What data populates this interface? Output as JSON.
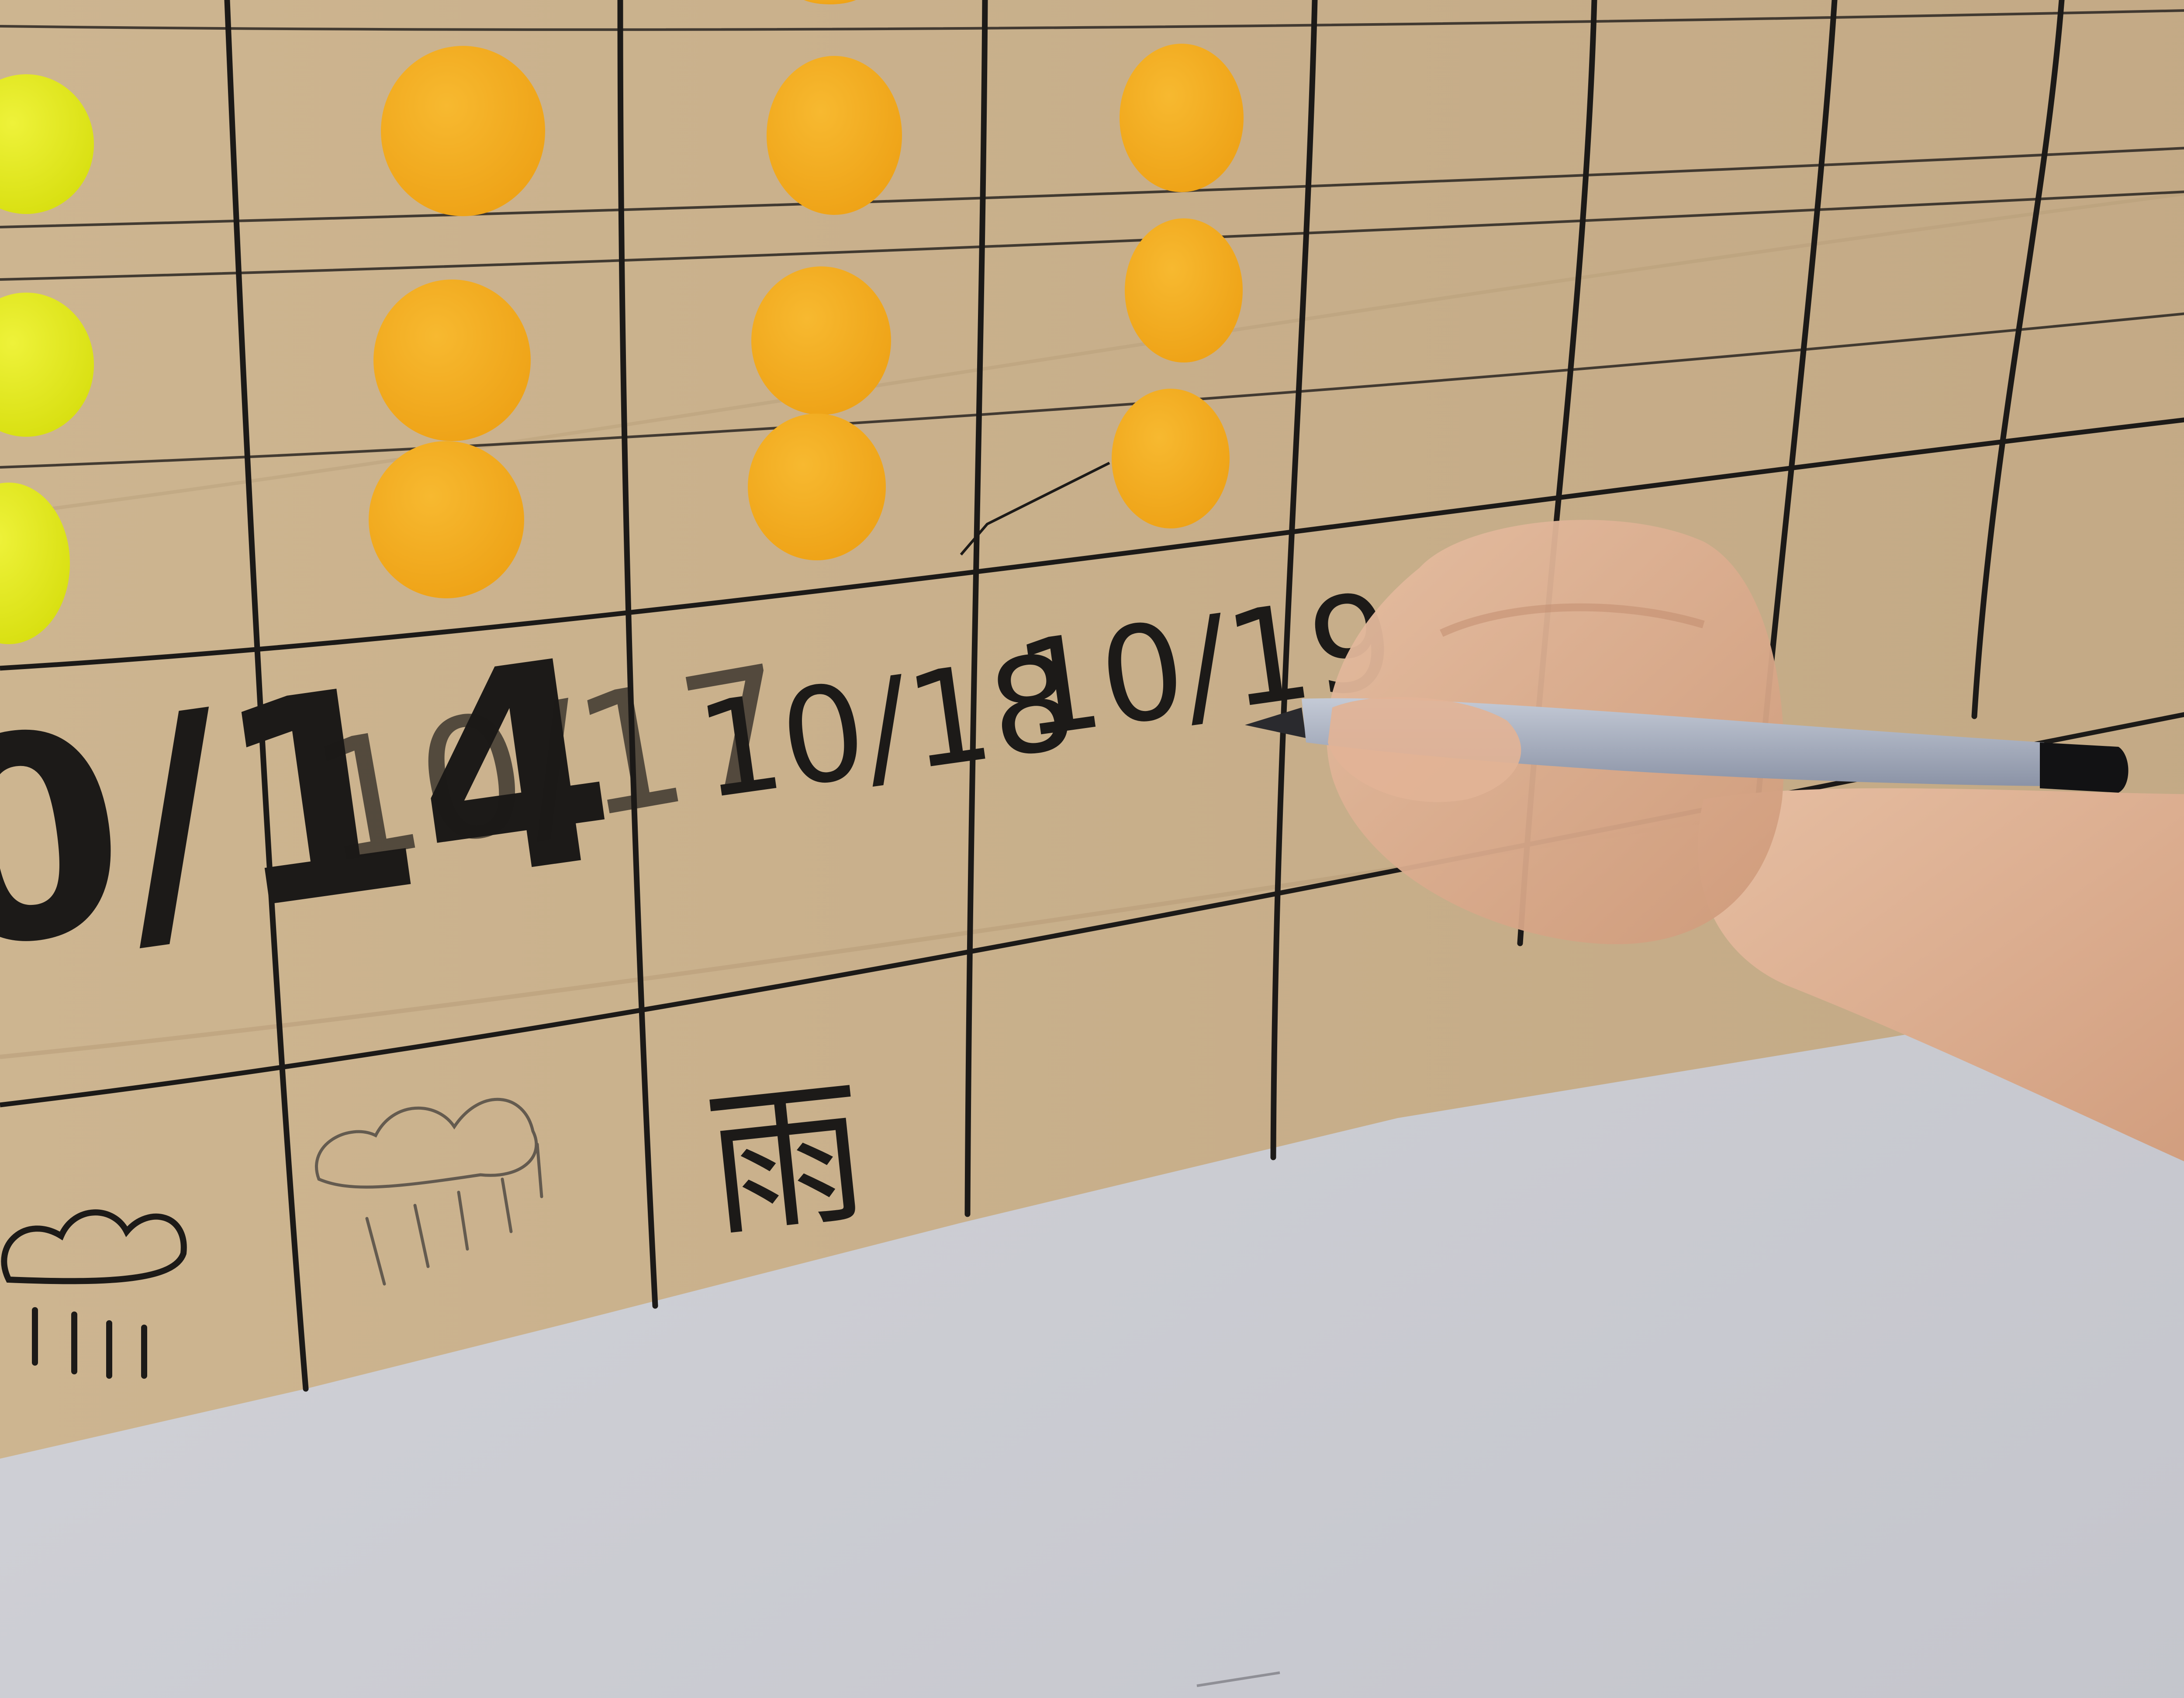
{
  "scene": {
    "description_tag": "photo",
    "colors": {
      "wall": "#cfd0d6",
      "paper": "#c9b08a",
      "grid_line": "#1c1a18",
      "sticker_yellow": "#e5ec16",
      "sticker_orange": "#f3ad1c",
      "skin": "#dcae8f",
      "marker_body": "#a7aebf"
    }
  },
  "chart": {
    "dates": [
      "10/17",
      "10/18",
      "10/19"
    ],
    "partial_date": "0/14",
    "weather_kanji": "雨",
    "rain_marks": "l l l l"
  },
  "stickers": {
    "column_counts": [
      3,
      3,
      3,
      3
    ]
  }
}
